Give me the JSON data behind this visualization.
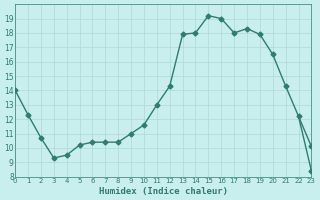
{
  "x": [
    0,
    1,
    2,
    3,
    4,
    5,
    6,
    7,
    8,
    9,
    10,
    11,
    12,
    13,
    14,
    15,
    16,
    17,
    18,
    19,
    20,
    21,
    22,
    23
  ],
  "y": [
    14,
    12.3,
    10.7,
    9.3,
    9.5,
    10.2,
    10.4,
    10.4,
    10.4,
    11.0,
    11.6,
    13.0,
    14.3,
    17.9,
    18.0,
    19.2,
    19.0,
    18.0,
    18.3,
    17.9,
    16.5,
    14.3,
    12.2,
    10.1
  ],
  "last_y": 8.4,
  "line_color": "#2e7d6e",
  "bg_color": "#c8eeee",
  "grid_color": "#b0d8d8",
  "tick_color": "#2e7d6e",
  "xlabel": "Humidex (Indice chaleur)",
  "ylim": [
    8,
    20
  ],
  "xlim": [
    0,
    23
  ],
  "yticks": [
    8,
    9,
    10,
    11,
    12,
    13,
    14,
    15,
    16,
    17,
    18,
    19
  ],
  "xticks": [
    0,
    1,
    2,
    3,
    4,
    5,
    6,
    7,
    8,
    9,
    10,
    11,
    12,
    13,
    14,
    15,
    16,
    17,
    18,
    19,
    20,
    21,
    22,
    23
  ]
}
